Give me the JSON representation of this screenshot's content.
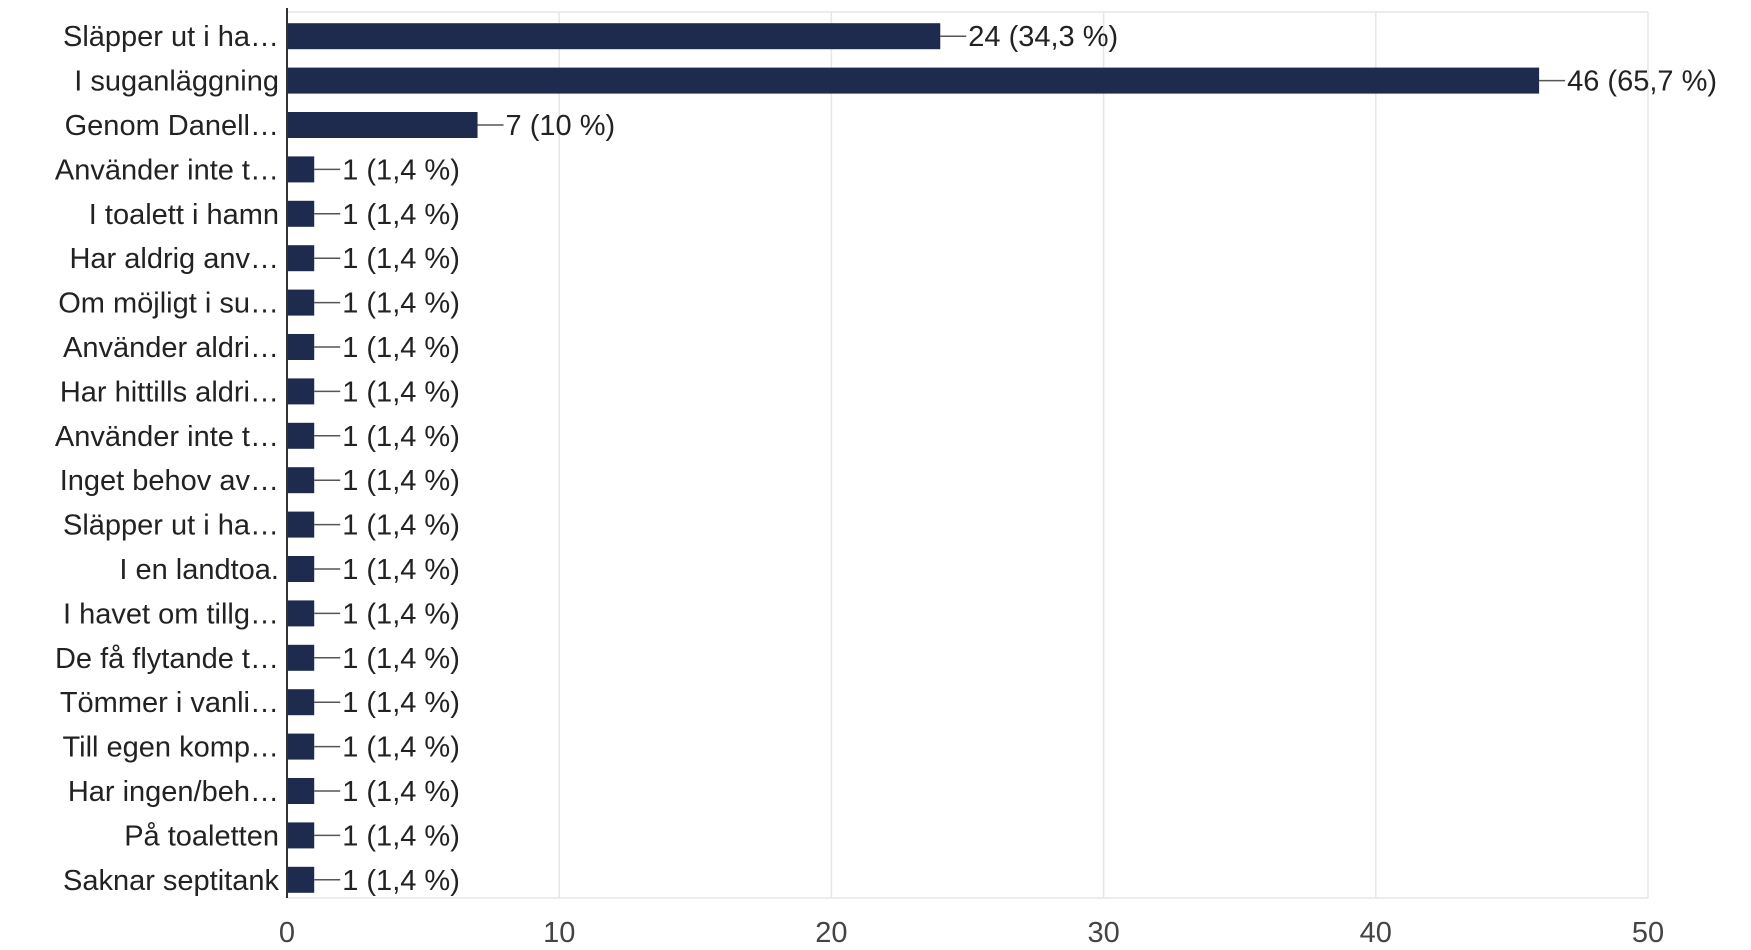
{
  "chart_data": {
    "type": "bar",
    "orientation": "horizontal",
    "categories": [
      "Släpper ut i ha…",
      "I suganläggning",
      "Genom Danell…",
      "Använder inte t…",
      "I toalett i hamn",
      "Har aldrig anv…",
      "Om möjligt i su…",
      "Använder aldri…",
      "Har hittills aldri…",
      "Använder inte t…",
      "Inget behov av…",
      "Släpper ut i ha…",
      "I en landtoa.",
      "I havet om tillg…",
      "De få flytande t…",
      "Tömmer i vanli…",
      "Till egen komp…",
      "Har ingen/beh…",
      "På toaletten",
      "Saknar septitank"
    ],
    "values": [
      24,
      46,
      7,
      1,
      1,
      1,
      1,
      1,
      1,
      1,
      1,
      1,
      1,
      1,
      1,
      1,
      1,
      1,
      1,
      1
    ],
    "data_labels": [
      "24 (34,3 %)",
      "46 (65,7 %)",
      "7 (10 %)",
      "1 (1,4 %)",
      "1 (1,4 %)",
      "1 (1,4 %)",
      "1 (1,4 %)",
      "1 (1,4 %)",
      "1 (1,4 %)",
      "1 (1,4 %)",
      "1 (1,4 %)",
      "1 (1,4 %)",
      "1 (1,4 %)",
      "1 (1,4 %)",
      "1 (1,4 %)",
      "1 (1,4 %)",
      "1 (1,4 %)",
      "1 (1,4 %)",
      "1 (1,4 %)",
      "1 (1,4 %)"
    ],
    "xlim": [
      0,
      50
    ],
    "xticks": [
      0,
      10,
      20,
      30,
      40,
      50
    ],
    "xtick_labels": [
      "0",
      "10",
      "20",
      "30",
      "40",
      "50"
    ],
    "grid": true,
    "title": "",
    "xlabel": "",
    "ylabel": "",
    "colors": {
      "bar": "#1f2a4f",
      "grid": "#e6e6e6",
      "axis": "#333333",
      "leader": "#555555"
    }
  }
}
